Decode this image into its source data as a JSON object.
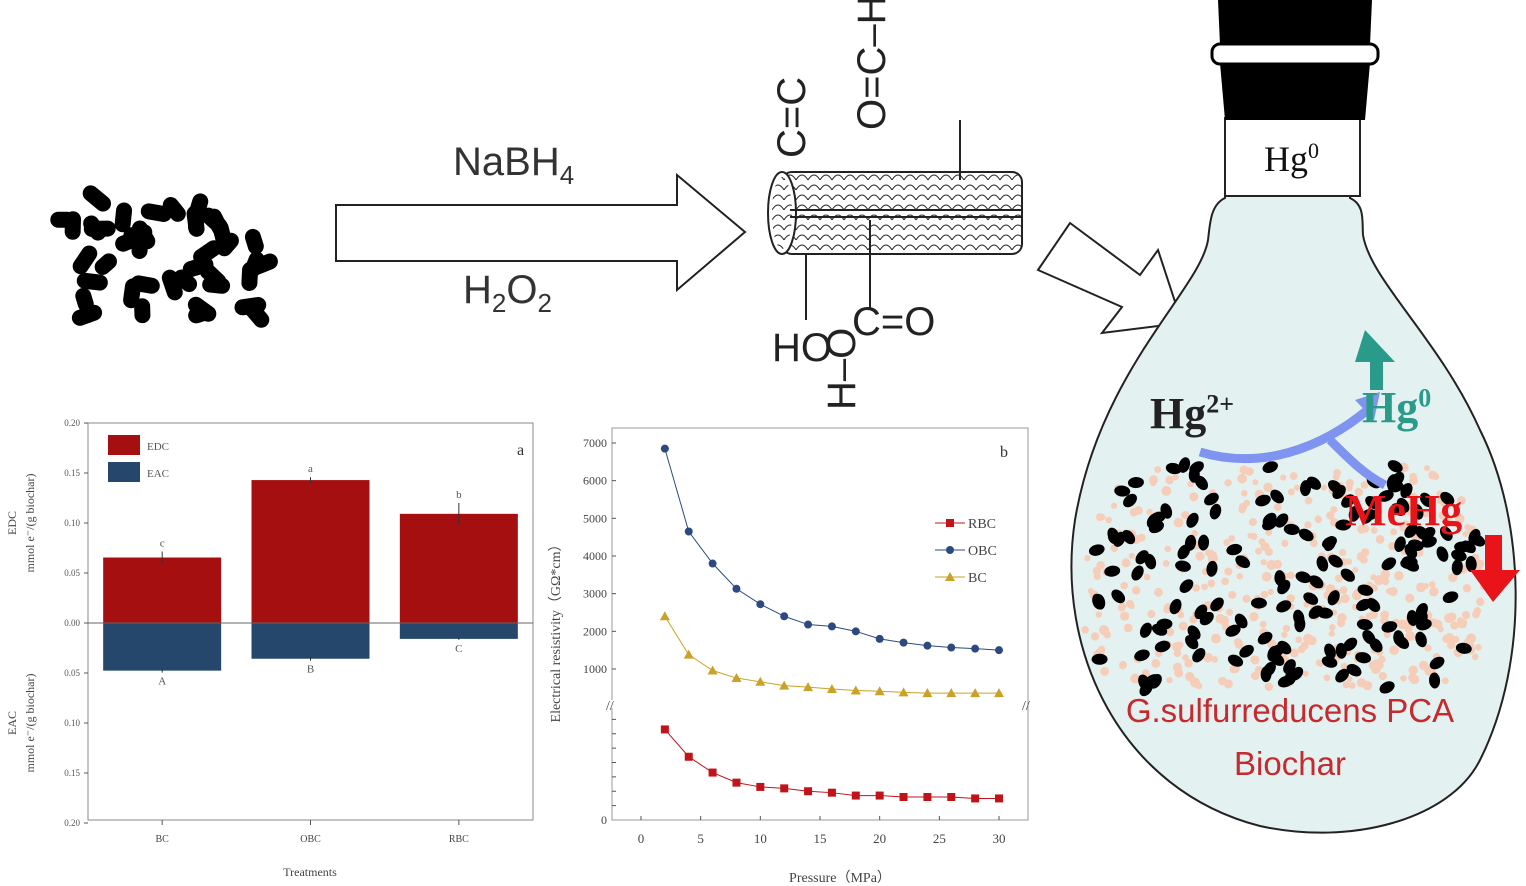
{
  "scheme": {
    "reagent_top": "NaBH",
    "reagent_top_sub": "4",
    "reagent_bottom_pre": "H",
    "reagent_bottom_sub1": "2",
    "reagent_bottom_mid": "O",
    "reagent_bottom_sub2": "2",
    "groups": {
      "cc": "C=C",
      "cho": "O=C–H",
      "ho": "HO",
      "cooh_top": "C=O",
      "cooh_bottom": "H–O"
    }
  },
  "flask": {
    "neck_label": "Hg",
    "neck_label_sup": "0",
    "hg2_label": "Hg",
    "hg2_sup": "2+",
    "hg0_label": "Hg",
    "hg0_sup": "0",
    "mehg_label": "MeHg",
    "organism_label": "G.sulfurreducens PCA",
    "biochar_label": "Biochar",
    "colors": {
      "fill": "#e3f2f1",
      "teal": "#2a9a8a",
      "red": "#e8141a",
      "label_red": "#c62a2f",
      "blue": "#7f93f0"
    }
  },
  "chart_data": [
    {
      "type": "bar",
      "panel_label": "a",
      "categories": [
        "BC",
        "OBC",
        "RBC"
      ],
      "xlabel": "Treatments",
      "ylabel_top": [
        "EDC",
        "mmol e⁻/(g biochar)"
      ],
      "ylabel_bottom": [
        "EAC",
        "mmol e⁻/(g biochar)"
      ],
      "ylim": [
        -0.2,
        0.2
      ],
      "yticks": [
        "0.20",
        "0.15",
        "0.10",
        "0.05",
        "0.00",
        "0.05",
        "0.10",
        "0.15",
        "0.20"
      ],
      "series": [
        {
          "name": "EDC",
          "color": "#a50f0f",
          "values": [
            0.066,
            0.144,
            0.11
          ],
          "errors": [
            0.006,
            0.003,
            0.011
          ],
          "letters": [
            "c",
            "a",
            "b"
          ]
        },
        {
          "name": "EAC",
          "color": "#24476b",
          "values": [
            -0.048,
            -0.036,
            -0.016
          ],
          "errors": [
            0.002,
            0.002,
            0.001
          ],
          "letters": [
            "A",
            "B",
            "C"
          ]
        }
      ],
      "legend": "top-left"
    },
    {
      "type": "line",
      "panel_label": "b",
      "xlabel": "Pressure（MPa）",
      "ylabel": "Electrical resistivity（GΩ*cm）",
      "x": [
        2,
        4,
        6,
        8,
        10,
        12,
        14,
        16,
        18,
        20,
        22,
        24,
        26,
        28,
        30
      ],
      "xlim": [
        -2,
        31
      ],
      "xticks": [
        "0",
        "5",
        "10",
        "15",
        "20",
        "25",
        "30"
      ],
      "ylim_upper": [
        50,
        7400
      ],
      "yticks_upper": [
        "7000",
        "6000",
        "5000",
        "4000",
        "3000",
        "2000",
        "1000"
      ],
      "ylim_lower": [
        0,
        80
      ],
      "axis_break": true,
      "series": [
        {
          "name": "RBC",
          "color": "#c0141a",
          "marker": "square",
          "axis": "lower",
          "values": [
            63,
            44,
            33,
            26,
            23,
            22,
            20,
            19,
            17,
            17,
            16,
            16,
            16,
            15,
            15
          ]
        },
        {
          "name": "OBC",
          "color": "#2c4a80",
          "marker": "circle",
          "axis": "upper",
          "values": [
            6850,
            4650,
            3800,
            3130,
            2720,
            2400,
            2180,
            2130,
            2000,
            1800,
            1700,
            1620,
            1570,
            1540,
            1500
          ]
        },
        {
          "name": "BC",
          "color": "#c9a227",
          "marker": "triangle",
          "axis": "upper",
          "values": [
            2400,
            1380,
            960,
            760,
            660,
            560,
            520,
            470,
            430,
            410,
            380,
            360,
            360,
            360,
            360
          ]
        }
      ],
      "legend": "right"
    }
  ]
}
